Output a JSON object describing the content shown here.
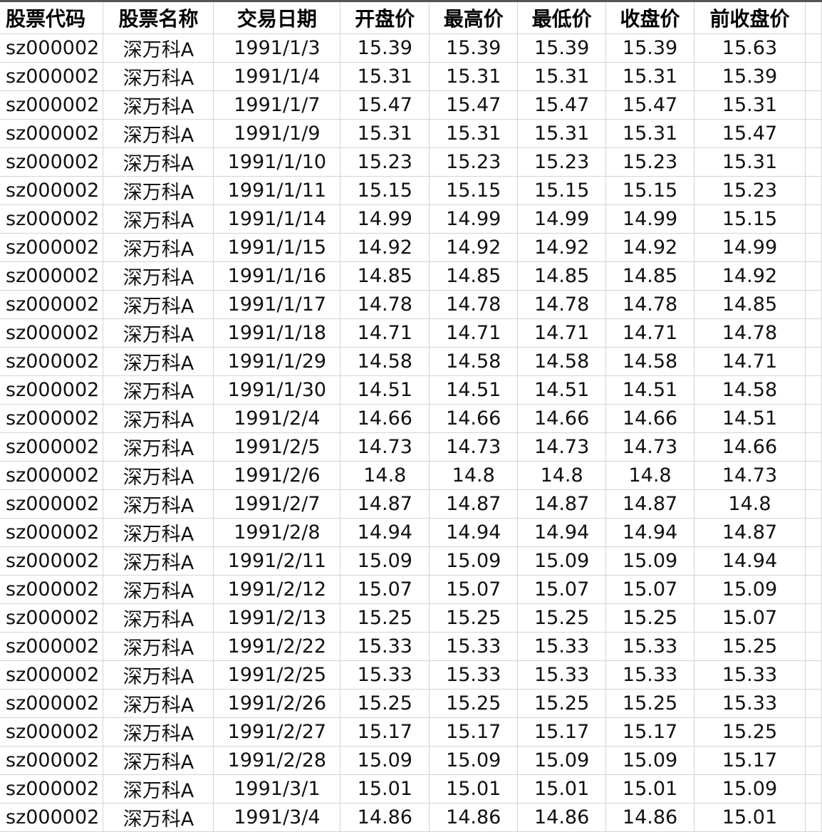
{
  "headers": [
    "股票代码",
    "股票名称",
    "交易日期",
    "开盘价",
    "最高价",
    "最低价",
    "收盘价",
    "前收盘价"
  ],
  "rows": [
    [
      "sz000002",
      "深万科A",
      "1991/1/3",
      "15.39",
      "15.39",
      "15.39",
      "15.39",
      "15.63"
    ],
    [
      "sz000002",
      "深万科A",
      "1991/1/4",
      "15.31",
      "15.31",
      "15.31",
      "15.31",
      "15.39"
    ],
    [
      "sz000002",
      "深万科A",
      "1991/1/7",
      "15.47",
      "15.47",
      "15.47",
      "15.47",
      "15.31"
    ],
    [
      "sz000002",
      "深万科A",
      "1991/1/9",
      "15.31",
      "15.31",
      "15.31",
      "15.31",
      "15.47"
    ],
    [
      "sz000002",
      "深万科A",
      "1991/1/10",
      "15.23",
      "15.23",
      "15.23",
      "15.23",
      "15.31"
    ],
    [
      "sz000002",
      "深万科A",
      "1991/1/11",
      "15.15",
      "15.15",
      "15.15",
      "15.15",
      "15.23"
    ],
    [
      "sz000002",
      "深万科A",
      "1991/1/14",
      "14.99",
      "14.99",
      "14.99",
      "14.99",
      "15.15"
    ],
    [
      "sz000002",
      "深万科A",
      "1991/1/15",
      "14.92",
      "14.92",
      "14.92",
      "14.92",
      "14.99"
    ],
    [
      "sz000002",
      "深万科A",
      "1991/1/16",
      "14.85",
      "14.85",
      "14.85",
      "14.85",
      "14.92"
    ],
    [
      "sz000002",
      "深万科A",
      "1991/1/17",
      "14.78",
      "14.78",
      "14.78",
      "14.78",
      "14.85"
    ],
    [
      "sz000002",
      "深万科A",
      "1991/1/18",
      "14.71",
      "14.71",
      "14.71",
      "14.71",
      "14.78"
    ],
    [
      "sz000002",
      "深万科A",
      "1991/1/29",
      "14.58",
      "14.58",
      "14.58",
      "14.58",
      "14.71"
    ],
    [
      "sz000002",
      "深万科A",
      "1991/1/30",
      "14.51",
      "14.51",
      "14.51",
      "14.51",
      "14.58"
    ],
    [
      "sz000002",
      "深万科A",
      "1991/2/4",
      "14.66",
      "14.66",
      "14.66",
      "14.66",
      "14.51"
    ],
    [
      "sz000002",
      "深万科A",
      "1991/2/5",
      "14.73",
      "14.73",
      "14.73",
      "14.73",
      "14.66"
    ],
    [
      "sz000002",
      "深万科A",
      "1991/2/6",
      "14.8",
      "14.8",
      "14.8",
      "14.8",
      "14.73"
    ],
    [
      "sz000002",
      "深万科A",
      "1991/2/7",
      "14.87",
      "14.87",
      "14.87",
      "14.87",
      "14.8"
    ],
    [
      "sz000002",
      "深万科A",
      "1991/2/8",
      "14.94",
      "14.94",
      "14.94",
      "14.94",
      "14.87"
    ],
    [
      "sz000002",
      "深万科A",
      "1991/2/11",
      "15.09",
      "15.09",
      "15.09",
      "15.09",
      "14.94"
    ],
    [
      "sz000002",
      "深万科A",
      "1991/2/12",
      "15.07",
      "15.07",
      "15.07",
      "15.07",
      "15.09"
    ],
    [
      "sz000002",
      "深万科A",
      "1991/2/13",
      "15.25",
      "15.25",
      "15.25",
      "15.25",
      "15.07"
    ],
    [
      "sz000002",
      "深万科A",
      "1991/2/22",
      "15.33",
      "15.33",
      "15.33",
      "15.33",
      "15.25"
    ],
    [
      "sz000002",
      "深万科A",
      "1991/2/25",
      "15.33",
      "15.33",
      "15.33",
      "15.33",
      "15.33"
    ],
    [
      "sz000002",
      "深万科A",
      "1991/2/26",
      "15.25",
      "15.25",
      "15.25",
      "15.25",
      "15.33"
    ],
    [
      "sz000002",
      "深万科A",
      "1991/2/27",
      "15.17",
      "15.17",
      "15.17",
      "15.17",
      "15.25"
    ],
    [
      "sz000002",
      "深万科A",
      "1991/2/28",
      "15.09",
      "15.09",
      "15.09",
      "15.09",
      "15.17"
    ],
    [
      "sz000002",
      "深万科A",
      "1991/3/1",
      "15.01",
      "15.01",
      "15.01",
      "15.01",
      "15.09"
    ],
    [
      "sz000002",
      "深万科A",
      "1991/3/4",
      "14.86",
      "14.86",
      "14.86",
      "14.86",
      "15.01"
    ]
  ]
}
